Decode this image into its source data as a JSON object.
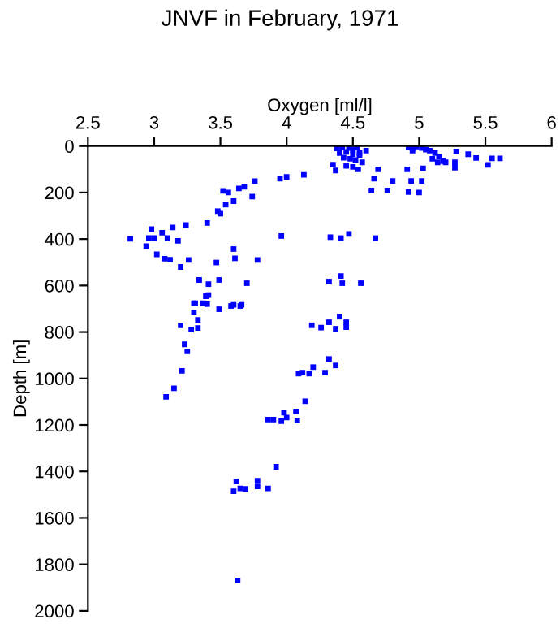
{
  "chart_data": {
    "type": "scatter",
    "title": "JNVF in February, 1971",
    "xlabel": "Oxygen [ml/l]",
    "ylabel": "Depth [m]",
    "xlim": [
      2.5,
      6
    ],
    "xticks": [
      2.5,
      3,
      3.5,
      4,
      4.5,
      5,
      5.5,
      6
    ],
    "ylim": [
      2000,
      0
    ],
    "yticks": [
      0,
      200,
      400,
      600,
      800,
      1000,
      1200,
      1400,
      1600,
      1800,
      2000
    ],
    "grid": false,
    "marker": "square",
    "series": [
      {
        "color": "#0000ff",
        "x": [
          4.38,
          4.42,
          4.47,
          4.5,
          4.53,
          4.45,
          4.4,
          4.5,
          4.55,
          4.43,
          4.48,
          4.52,
          4.57,
          4.35,
          4.45,
          4.5,
          4.54,
          4.37,
          4.6,
          4.55,
          4.92,
          4.95,
          4.98,
          5.02,
          5.05,
          5.08,
          4.95,
          5.12,
          5.15,
          5.1,
          5.14,
          5.18,
          5.2,
          5.28,
          5.37,
          5.43,
          5.55,
          5.61,
          5.52,
          5.27,
          5.27,
          4.69,
          4.91,
          5.03,
          4.66,
          4.64,
          4.76,
          4.8,
          4.94,
          5.02,
          4.92,
          5.0,
          3.95,
          4.0,
          4.13,
          3.76,
          3.68,
          3.64,
          3.74,
          3.52,
          3.56,
          3.6,
          3.54,
          3.5,
          3.48,
          3.4,
          3.24,
          2.98,
          3.06,
          3.14,
          2.82,
          2.96,
          3.0,
          3.1,
          3.18,
          2.94,
          3.02,
          3.12,
          3.2,
          3.26,
          3.08,
          3.96,
          4.33,
          4.41,
          4.47,
          4.67,
          3.6,
          3.61,
          3.78,
          3.47,
          3.34,
          3.41,
          3.49,
          3.7,
          4.32,
          4.41,
          4.42,
          4.56,
          3.41,
          3.31,
          3.4,
          3.6,
          3.66,
          3.09,
          3.15,
          3.21,
          3.25,
          3.23,
          3.2,
          3.28,
          3.33,
          3.3,
          3.33,
          3.3,
          3.37,
          3.39,
          3.49,
          3.58,
          3.65,
          4.19,
          4.26,
          4.32,
          4.4,
          4.45,
          4.37,
          4.45,
          4.09,
          4.12,
          4.17,
          4.2,
          4.29,
          4.32,
          4.37,
          4.14,
          3.86,
          3.9,
          3.96,
          3.98,
          4.0,
          4.07,
          4.08,
          3.92,
          3.6,
          3.62,
          3.65,
          3.69,
          3.78,
          3.78,
          3.86,
          3.63
        ],
        "values": [
          10,
          5,
          8,
          15,
          5,
          25,
          30,
          35,
          40,
          50,
          55,
          60,
          70,
          80,
          85,
          90,
          100,
          105,
          20,
          30,
          5,
          10,
          2,
          8,
          15,
          20,
          20,
          30,
          45,
          55,
          70,
          65,
          70,
          23,
          35,
          51,
          53,
          53,
          81,
          70,
          93,
          100,
          100,
          96,
          140,
          191,
          191,
          150,
          150,
          150,
          198,
          200,
          140,
          133,
          124,
          151,
          175,
          182,
          217,
          193,
          200,
          237,
          252,
          291,
          280,
          331,
          340,
          357,
          373,
          350,
          399,
          396,
          396,
          396,
          408,
          431,
          466,
          489,
          520,
          490,
          485,
          387,
          392,
          396,
          378,
          396,
          443,
          483,
          490,
          501,
          576,
          594,
          576,
          590,
          583,
          559,
          590,
          590,
          641,
          676,
          680,
          683,
          683,
          1079,
          1042,
          967,
          883,
          853,
          771,
          790,
          783,
          716,
          748,
          676,
          676,
          646,
          702,
          688,
          688,
          771,
          781,
          758,
          734,
          758,
          786,
          779,
          979,
          975,
          979,
          951,
          975,
          916,
          944,
          1098,
          1177,
          1177,
          1184,
          1147,
          1168,
          1142,
          1180,
          1380,
          1485,
          1443,
          1473,
          1475,
          1440,
          1464,
          1473,
          1869
        ]
      }
    ]
  }
}
